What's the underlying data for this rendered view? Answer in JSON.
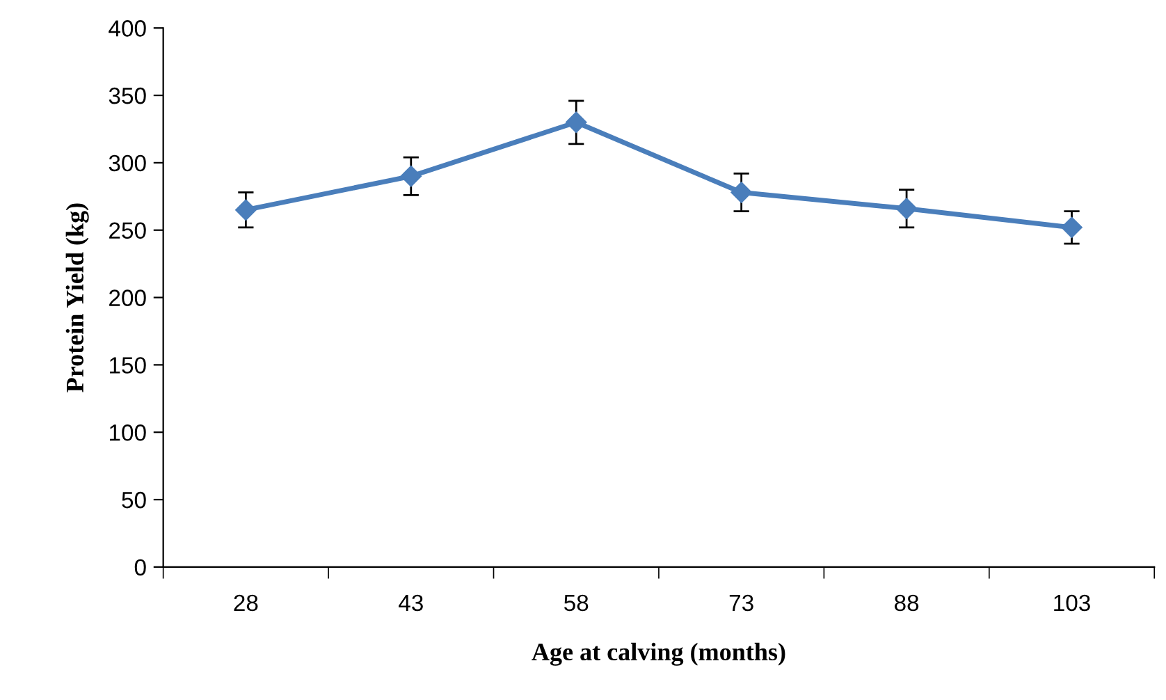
{
  "chart_data": {
    "type": "line",
    "xlabel": "Age at calving (months)",
    "ylabel": "Protein Yield (kg)",
    "categories": [
      "28",
      "43",
      "58",
      "73",
      "88",
      "103"
    ],
    "series": [
      {
        "color": "#4a7ebb",
        "values": [
          265,
          290,
          330,
          278,
          266,
          252
        ],
        "errors": [
          13,
          14,
          16,
          14,
          14,
          12
        ]
      }
    ],
    "ylim": [
      0,
      400
    ],
    "yticks": [
      0,
      50,
      100,
      150,
      200,
      250,
      300,
      350,
      400
    ],
    "grid": false,
    "marker": "diamond",
    "line_style": "solid"
  }
}
